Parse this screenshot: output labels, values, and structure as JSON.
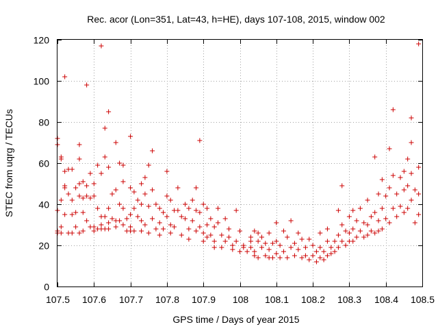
{
  "chart_data": {
    "type": "scatter",
    "title": "Rec. acor (Lon=351, Lat=43, h=HE), days 107-108, 2015, window 002",
    "xlabel": "GPS time / Days of year 2015",
    "ylabel": "STEC from uqrg / TECUs",
    "xlim": [
      107.5,
      108.5
    ],
    "ylim": [
      0,
      120
    ],
    "xticks": [
      107.5,
      107.6,
      107.7,
      107.8,
      107.9,
      108.0,
      108.1,
      108.2,
      108.3,
      108.4,
      108.5
    ],
    "xtick_labels": [
      "107.5",
      "107.6",
      "107.7",
      "107.8",
      "107.9",
      "108",
      "108.1",
      "108.2",
      "108.3",
      "108.4",
      "108.5"
    ],
    "yticks": [
      0,
      20,
      40,
      60,
      80,
      100,
      120
    ],
    "ytick_labels": [
      "0",
      "20",
      "40",
      "60",
      "80",
      "100",
      "120"
    ],
    "grid": true,
    "marker": "+",
    "color": "#cc0000",
    "series": [
      {
        "name": "STEC",
        "points": [
          [
            107.5,
            72
          ],
          [
            107.5,
            69
          ],
          [
            107.5,
            37
          ],
          [
            107.5,
            27
          ],
          [
            107.5,
            26
          ],
          [
            107.51,
            62
          ],
          [
            107.51,
            63
          ],
          [
            107.51,
            42
          ],
          [
            107.51,
            29
          ],
          [
            107.51,
            26
          ],
          [
            107.52,
            102
          ],
          [
            107.52,
            56
          ],
          [
            107.52,
            49
          ],
          [
            107.52,
            48
          ],
          [
            107.52,
            35
          ],
          [
            107.53,
            57
          ],
          [
            107.53,
            45
          ],
          [
            107.53,
            26
          ],
          [
            107.54,
            57
          ],
          [
            107.54,
            42
          ],
          [
            107.54,
            35
          ],
          [
            107.54,
            26
          ],
          [
            107.55,
            48
          ],
          [
            107.55,
            36
          ],
          [
            107.55,
            29
          ],
          [
            107.56,
            69
          ],
          [
            107.56,
            62
          ],
          [
            107.56,
            50
          ],
          [
            107.56,
            44
          ],
          [
            107.56,
            26
          ],
          [
            107.57,
            51
          ],
          [
            107.57,
            43
          ],
          [
            107.57,
            36
          ],
          [
            107.57,
            27
          ],
          [
            107.58,
            98
          ],
          [
            107.58,
            49
          ],
          [
            107.58,
            44
          ],
          [
            107.58,
            32
          ],
          [
            107.59,
            55
          ],
          [
            107.59,
            43
          ],
          [
            107.59,
            29
          ],
          [
            107.6,
            50
          ],
          [
            107.6,
            44
          ],
          [
            107.6,
            29
          ],
          [
            107.6,
            27
          ],
          [
            107.61,
            59
          ],
          [
            107.61,
            38
          ],
          [
            107.61,
            28
          ],
          [
            107.62,
            117
          ],
          [
            107.62,
            55
          ],
          [
            107.62,
            34
          ],
          [
            107.62,
            30
          ],
          [
            107.62,
            28
          ],
          [
            107.63,
            77
          ],
          [
            107.63,
            63
          ],
          [
            107.63,
            34
          ],
          [
            107.63,
            28
          ],
          [
            107.64,
            85
          ],
          [
            107.64,
            58
          ],
          [
            107.64,
            38
          ],
          [
            107.64,
            31
          ],
          [
            107.64,
            28
          ],
          [
            107.65,
            45
          ],
          [
            107.65,
            33
          ],
          [
            107.66,
            70
          ],
          [
            107.66,
            47
          ],
          [
            107.66,
            32
          ],
          [
            107.66,
            29
          ],
          [
            107.67,
            60
          ],
          [
            107.67,
            40
          ],
          [
            107.67,
            32
          ],
          [
            107.68,
            59
          ],
          [
            107.68,
            51
          ],
          [
            107.68,
            38
          ],
          [
            107.68,
            30
          ],
          [
            107.69,
            33
          ],
          [
            107.69,
            27
          ],
          [
            107.7,
            73
          ],
          [
            107.7,
            48
          ],
          [
            107.7,
            35
          ],
          [
            107.7,
            29
          ],
          [
            107.7,
            27
          ],
          [
            107.71,
            46
          ],
          [
            107.71,
            38
          ],
          [
            107.71,
            27
          ],
          [
            107.72,
            42
          ],
          [
            107.72,
            34
          ],
          [
            107.73,
            50
          ],
          [
            107.73,
            40
          ],
          [
            107.73,
            32
          ],
          [
            107.73,
            27
          ],
          [
            107.74,
            53
          ],
          [
            107.74,
            45
          ],
          [
            107.74,
            30
          ],
          [
            107.75,
            59
          ],
          [
            107.75,
            39
          ],
          [
            107.75,
            26
          ],
          [
            107.76,
            66
          ],
          [
            107.76,
            47
          ],
          [
            107.76,
            33
          ],
          [
            107.77,
            40
          ],
          [
            107.77,
            28
          ],
          [
            107.78,
            38
          ],
          [
            107.78,
            31
          ],
          [
            107.78,
            25
          ],
          [
            107.79,
            36
          ],
          [
            107.79,
            28
          ],
          [
            107.8,
            56
          ],
          [
            107.8,
            44
          ],
          [
            107.8,
            34
          ],
          [
            107.81,
            42
          ],
          [
            107.81,
            30
          ],
          [
            107.81,
            26
          ],
          [
            107.82,
            37
          ],
          [
            107.82,
            29
          ],
          [
            107.83,
            48
          ],
          [
            107.83,
            37
          ],
          [
            107.84,
            34
          ],
          [
            107.84,
            25
          ],
          [
            107.85,
            40
          ],
          [
            107.85,
            33
          ],
          [
            107.86,
            38
          ],
          [
            107.86,
            28
          ],
          [
            107.86,
            23
          ],
          [
            107.87,
            42
          ],
          [
            107.87,
            32
          ],
          [
            107.88,
            48
          ],
          [
            107.88,
            37
          ],
          [
            107.88,
            27
          ],
          [
            107.89,
            71
          ],
          [
            107.89,
            36
          ],
          [
            107.89,
            29
          ],
          [
            107.9,
            40
          ],
          [
            107.9,
            26
          ],
          [
            107.9,
            22
          ],
          [
            107.91,
            38
          ],
          [
            107.91,
            30
          ],
          [
            107.91,
            24
          ],
          [
            107.92,
            33
          ],
          [
            107.92,
            25
          ],
          [
            107.93,
            29
          ],
          [
            107.93,
            22
          ],
          [
            107.93,
            19
          ],
          [
            107.94,
            38
          ],
          [
            107.94,
            31
          ],
          [
            107.95,
            25
          ],
          [
            107.95,
            19
          ],
          [
            107.96,
            33
          ],
          [
            107.96,
            22
          ],
          [
            107.97,
            28
          ],
          [
            107.97,
            24
          ],
          [
            107.98,
            20
          ],
          [
            107.98,
            18
          ],
          [
            107.99,
            37
          ],
          [
            107.99,
            22
          ],
          [
            108.0,
            27
          ],
          [
            108.0,
            17
          ],
          [
            108.01,
            20
          ],
          [
            108.01,
            19
          ],
          [
            108.02,
            17
          ],
          [
            108.03,
            24
          ],
          [
            108.03,
            22
          ],
          [
            108.03,
            19
          ],
          [
            108.04,
            27
          ],
          [
            108.04,
            17
          ],
          [
            108.04,
            15
          ],
          [
            108.05,
            26
          ],
          [
            108.05,
            22
          ],
          [
            108.05,
            14
          ],
          [
            108.06,
            24
          ],
          [
            108.06,
            19
          ],
          [
            108.07,
            21
          ],
          [
            108.07,
            15
          ],
          [
            108.08,
            26
          ],
          [
            108.08,
            18
          ],
          [
            108.08,
            14
          ],
          [
            108.09,
            21
          ],
          [
            108.09,
            14
          ],
          [
            108.1,
            31
          ],
          [
            108.1,
            22
          ],
          [
            108.1,
            16
          ],
          [
            108.11,
            20
          ],
          [
            108.11,
            14
          ],
          [
            108.12,
            27
          ],
          [
            108.12,
            17
          ],
          [
            108.13,
            24
          ],
          [
            108.13,
            14
          ],
          [
            108.14,
            32
          ],
          [
            108.14,
            19
          ],
          [
            108.15,
            21
          ],
          [
            108.15,
            15
          ],
          [
            108.16,
            26
          ],
          [
            108.16,
            18
          ],
          [
            108.17,
            23
          ],
          [
            108.17,
            14
          ],
          [
            108.18,
            19
          ],
          [
            108.18,
            15
          ],
          [
            108.19,
            23
          ],
          [
            108.19,
            13
          ],
          [
            108.2,
            20
          ],
          [
            108.2,
            15
          ],
          [
            108.21,
            17
          ],
          [
            108.21,
            12
          ],
          [
            108.22,
            26
          ],
          [
            108.22,
            19
          ],
          [
            108.22,
            14
          ],
          [
            108.23,
            17
          ],
          [
            108.23,
            13
          ],
          [
            108.24,
            28
          ],
          [
            108.24,
            22
          ],
          [
            108.24,
            15
          ],
          [
            108.25,
            19
          ],
          [
            108.25,
            16
          ],
          [
            108.26,
            22
          ],
          [
            108.26,
            17
          ],
          [
            108.27,
            37
          ],
          [
            108.27,
            25
          ],
          [
            108.27,
            19
          ],
          [
            108.28,
            49
          ],
          [
            108.28,
            30
          ],
          [
            108.28,
            22
          ],
          [
            108.29,
            27
          ],
          [
            108.29,
            20
          ],
          [
            108.3,
            34
          ],
          [
            108.3,
            26
          ],
          [
            108.3,
            22
          ],
          [
            108.31,
            37
          ],
          [
            108.31,
            28
          ],
          [
            108.31,
            22
          ],
          [
            108.32,
            32
          ],
          [
            108.32,
            24
          ],
          [
            108.33,
            38
          ],
          [
            108.33,
            27
          ],
          [
            108.34,
            31
          ],
          [
            108.34,
            24
          ],
          [
            108.35,
            42
          ],
          [
            108.35,
            30
          ],
          [
            108.35,
            25
          ],
          [
            108.36,
            34
          ],
          [
            108.36,
            27
          ],
          [
            108.37,
            63
          ],
          [
            108.37,
            36
          ],
          [
            108.37,
            26
          ],
          [
            108.38,
            45
          ],
          [
            108.38,
            32
          ],
          [
            108.38,
            27
          ],
          [
            108.39,
            52
          ],
          [
            108.39,
            38
          ],
          [
            108.39,
            28
          ],
          [
            108.4,
            44
          ],
          [
            108.4,
            33
          ],
          [
            108.41,
            67
          ],
          [
            108.41,
            48
          ],
          [
            108.41,
            31
          ],
          [
            108.42,
            86
          ],
          [
            108.42,
            54
          ],
          [
            108.42,
            38
          ],
          [
            108.43,
            45
          ],
          [
            108.43,
            34
          ],
          [
            108.44,
            53
          ],
          [
            108.44,
            39
          ],
          [
            108.45,
            56
          ],
          [
            108.45,
            47
          ],
          [
            108.45,
            36
          ],
          [
            108.46,
            62
          ],
          [
            108.46,
            49
          ],
          [
            108.46,
            38
          ],
          [
            108.47,
            82
          ],
          [
            108.47,
            70
          ],
          [
            108.47,
            55
          ],
          [
            108.47,
            42
          ],
          [
            108.48,
            47
          ],
          [
            108.48,
            31
          ],
          [
            108.49,
            118
          ],
          [
            108.49,
            58
          ],
          [
            108.49,
            45
          ],
          [
            108.49,
            35
          ]
        ]
      }
    ]
  }
}
